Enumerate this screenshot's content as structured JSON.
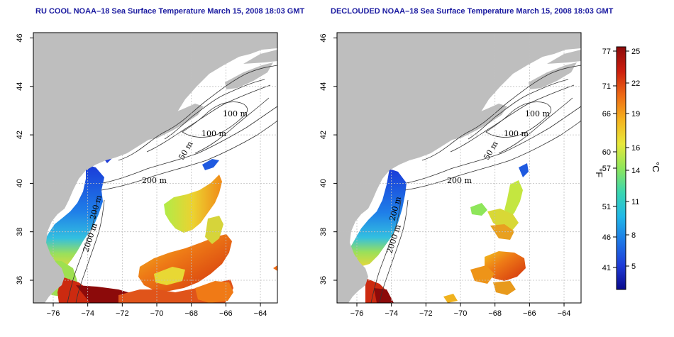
{
  "panels": [
    {
      "title": "RU COOL NOAA–18 Sea Surface Temperature March 15, 2008 18:03 GMT",
      "contour_labels": [
        "100 m",
        "100 m",
        "50 m",
        "200 m",
        "200 m",
        "2000 m"
      ]
    },
    {
      "title": "DECLOUDED NOAA–18 Sea Surface Temperature March 15, 2008 18:03 GMT",
      "contour_labels": [
        "100 m",
        "100 m",
        "50 m",
        "200 m",
        "200 m",
        "2000 m"
      ]
    }
  ],
  "x_ticks": [
    "−76",
    "−74",
    "−72",
    "−70",
    "−68",
    "−66",
    "−64"
  ],
  "y_ticks": [
    "36",
    "38",
    "40",
    "42",
    "44",
    "46"
  ],
  "colorbar": {
    "fahrenheit_ticks": [
      "77",
      "71",
      "66",
      "60",
      "57",
      "51",
      "46",
      "41"
    ],
    "celsius_ticks": [
      "25",
      "22",
      "19",
      "16",
      "14",
      "11",
      "8",
      "5"
    ],
    "fahrenheit_label": "°F",
    "celsius_label": "°C",
    "colors": [
      "#0a0a8c",
      "#1f3cd8",
      "#1e78e6",
      "#21b8e8",
      "#3ad6b0",
      "#8ee65a",
      "#e8e83a",
      "#f5b21e",
      "#ee6a14",
      "#cc1e0e",
      "#8c0a0a"
    ]
  },
  "colors": {
    "land": "#bebebe",
    "ocean": "#ffffff",
    "grid": "#bfbfbf",
    "title": "#1a1aa0",
    "contour": "#333333"
  }
}
